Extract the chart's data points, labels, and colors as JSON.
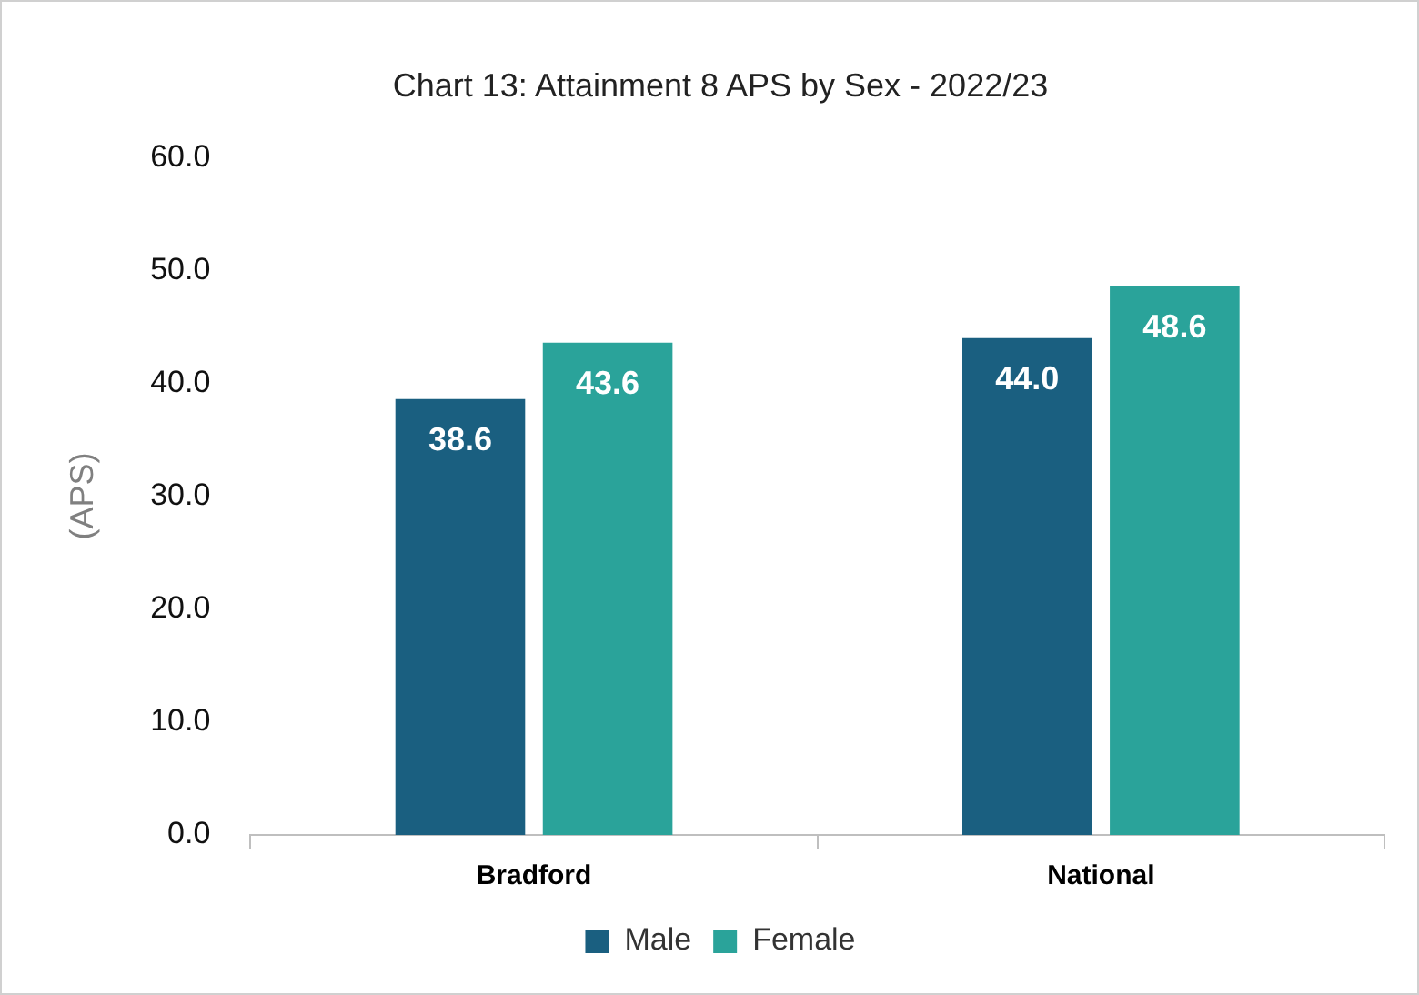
{
  "chart_data": {
    "type": "bar",
    "title": "Chart 13: Attainment 8 APS by Sex - 2022/23",
    "ylabel": "(APS)",
    "categories": [
      "Bradford",
      "National"
    ],
    "series": [
      {
        "name": "Male",
        "color": "#1a5f80",
        "values": [
          38.6,
          44.0
        ],
        "value_labels": [
          "38.6",
          "44.0"
        ]
      },
      {
        "name": "Female",
        "color": "#2aa39a",
        "values": [
          43.6,
          48.6
        ],
        "value_labels": [
          "43.6",
          "48.6"
        ]
      }
    ],
    "ylim": [
      0,
      60
    ],
    "yticks": [
      {
        "value": 0,
        "label": "0.0"
      },
      {
        "value": 10,
        "label": "10.0"
      },
      {
        "value": 20,
        "label": "20.0"
      },
      {
        "value": 30,
        "label": "30.0"
      },
      {
        "value": 40,
        "label": "40.0"
      },
      {
        "value": 50,
        "label": "50.0"
      },
      {
        "value": 60,
        "label": "60.0"
      }
    ],
    "grid": false,
    "legend": "bottom"
  }
}
